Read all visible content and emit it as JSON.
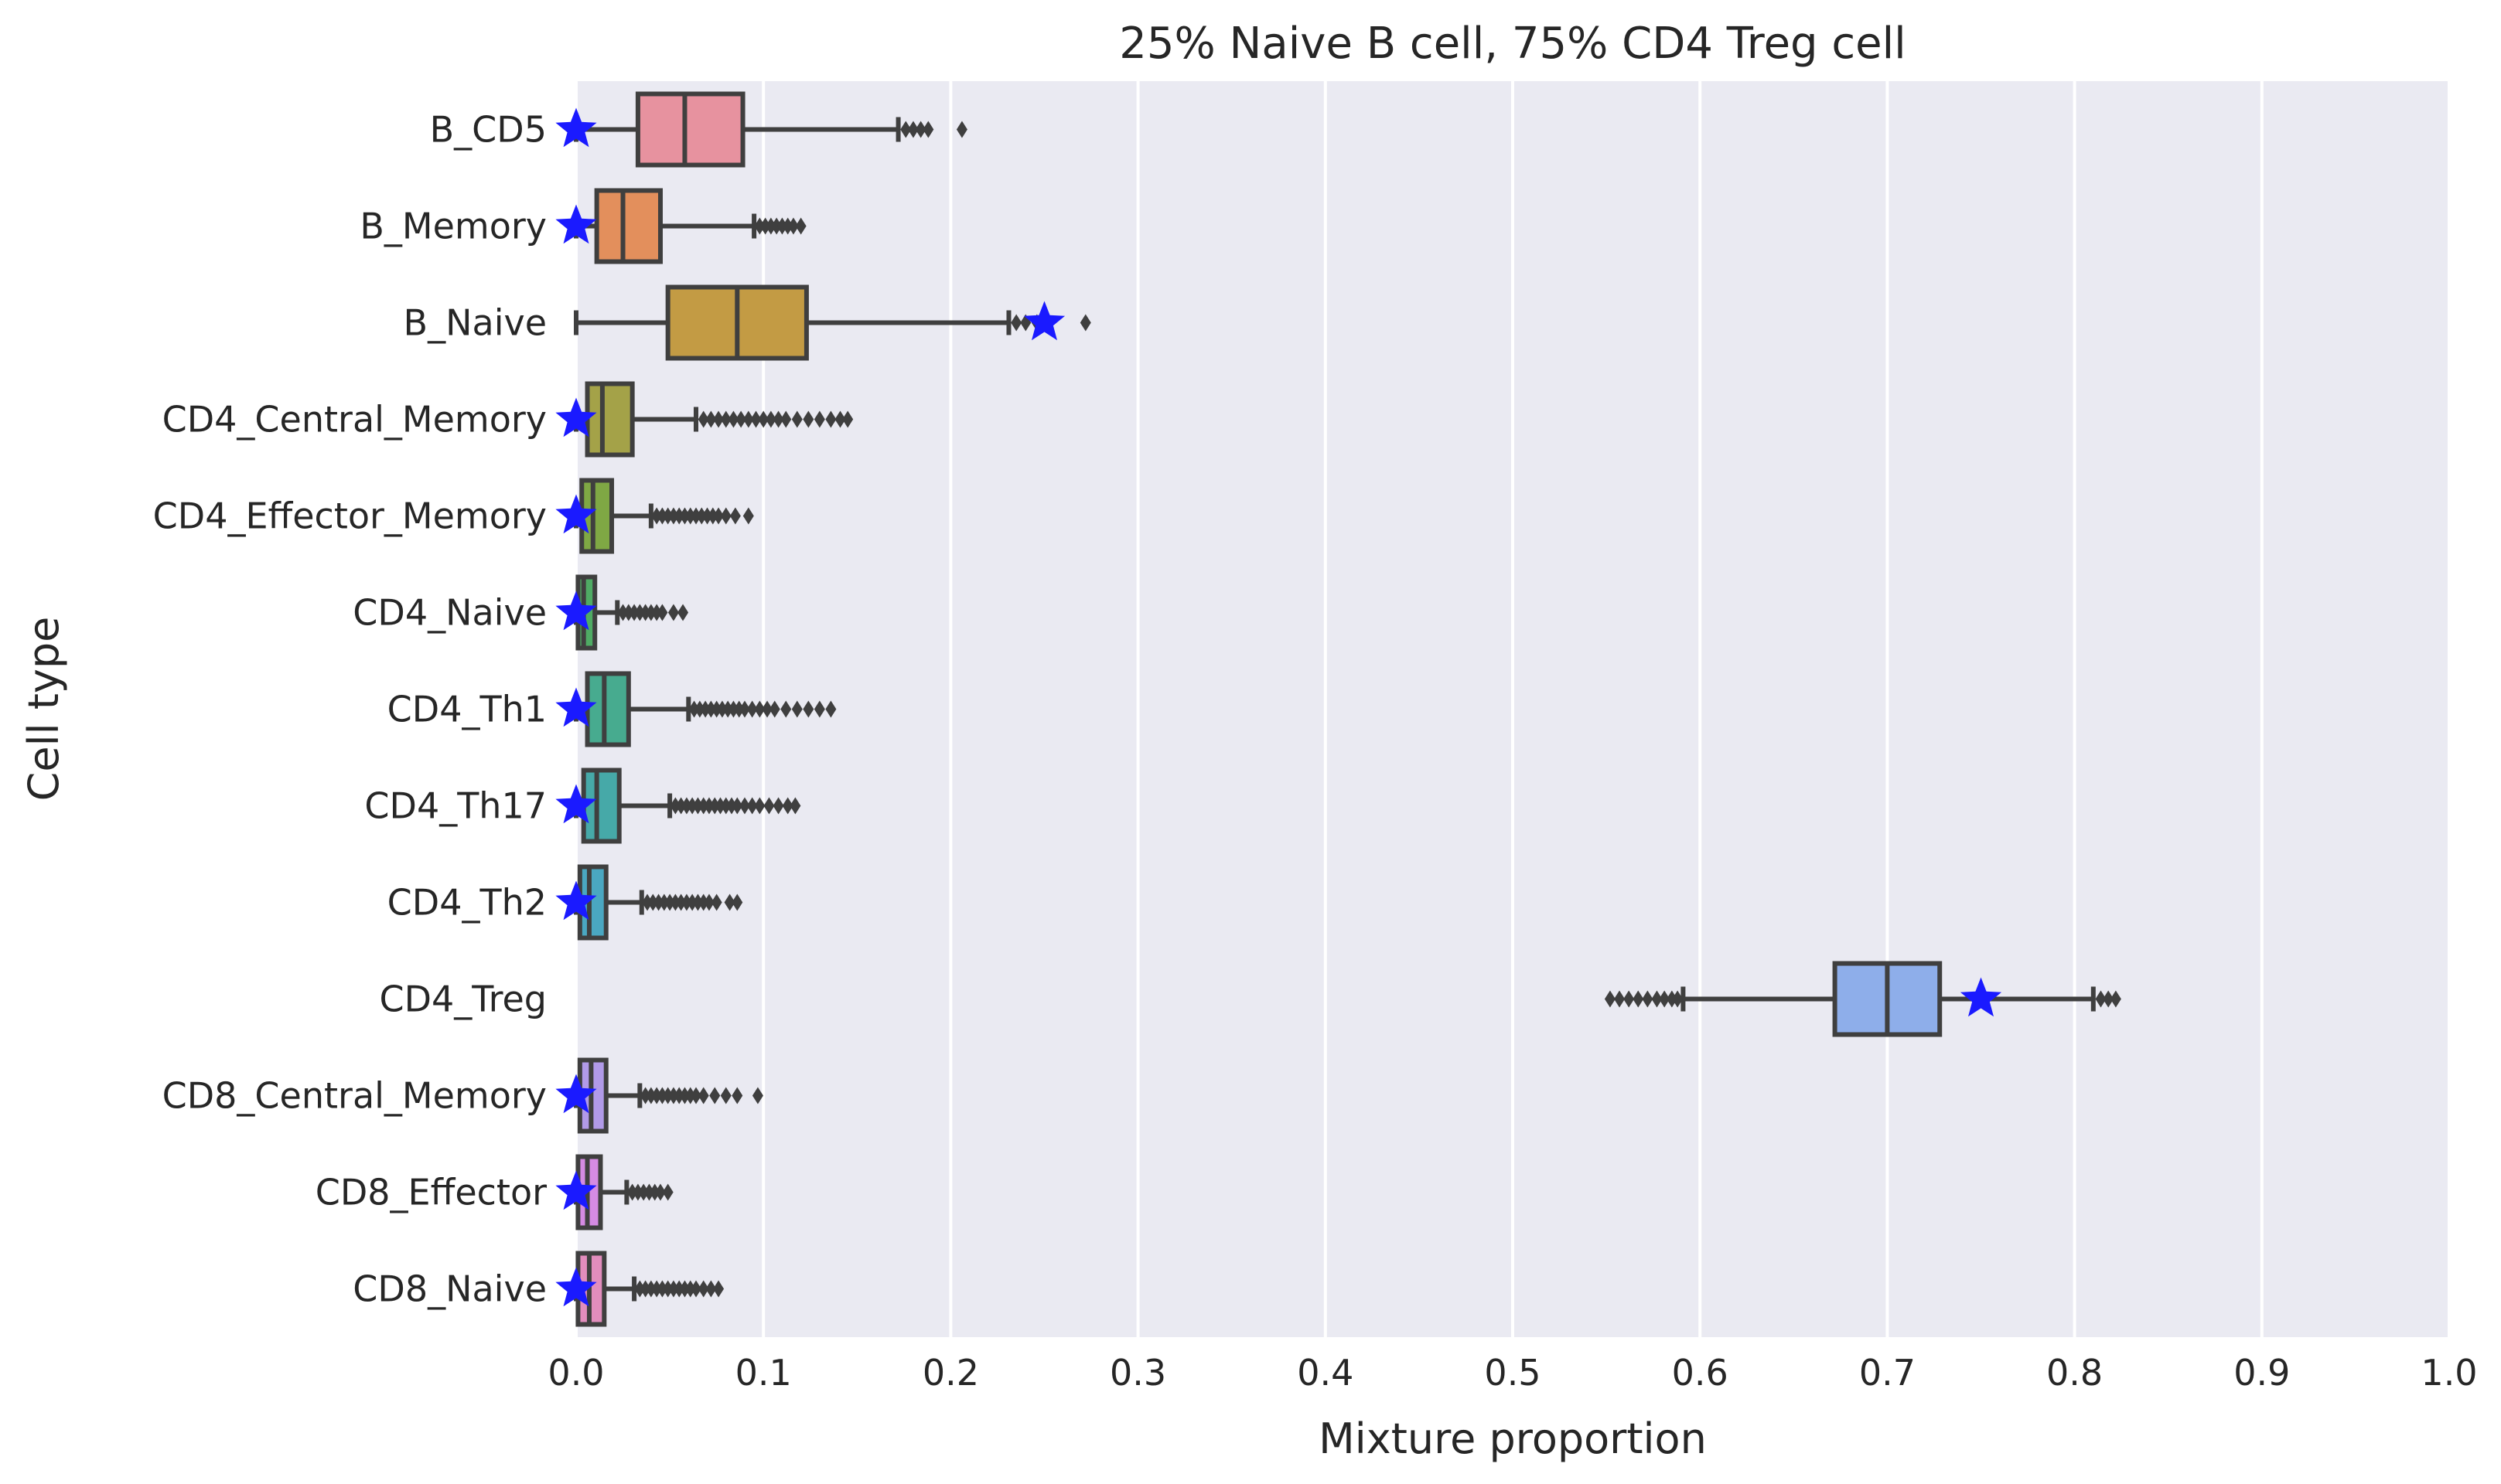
{
  "chart_data": {
    "type": "boxplot",
    "title": "25% Naive B cell, 75% CD4 Treg cell",
    "xlabel": "Mixture proportion",
    "ylabel": "Cell type",
    "xlim": [
      0,
      1
    ],
    "xticks": [
      "0.0",
      "0.1",
      "0.2",
      "0.3",
      "0.4",
      "0.5",
      "0.6",
      "0.7",
      "0.8",
      "0.9",
      "1.0"
    ],
    "grid": true,
    "marker_color": "#1a1aff",
    "categories": [
      {
        "name": "B_CD5",
        "color": "#e7929f",
        "whislo": 0.0,
        "q1": 0.033,
        "med": 0.058,
        "q3": 0.089,
        "whishi": 0.172,
        "fliers": [
          0.176,
          0.18,
          0.184,
          0.188,
          0.206
        ],
        "true": 0.0
      },
      {
        "name": "B_Memory",
        "color": "#e38f5c",
        "whislo": 0.0,
        "q1": 0.011,
        "med": 0.025,
        "q3": 0.045,
        "whishi": 0.095,
        "fliers": [
          0.098,
          0.101,
          0.104,
          0.107,
          0.11,
          0.113,
          0.116,
          0.12
        ],
        "true": 0.0
      },
      {
        "name": "B_Naive",
        "color": "#c39b44",
        "whislo": 0.0,
        "q1": 0.049,
        "med": 0.086,
        "q3": 0.123,
        "whishi": 0.231,
        "fliers": [
          0.235,
          0.24,
          0.246,
          0.272
        ],
        "true": 0.25
      },
      {
        "name": "CD4_Central_Memory",
        "color": "#a4a248",
        "whislo": 0.0,
        "q1": 0.006,
        "med": 0.014,
        "q3": 0.03,
        "whishi": 0.064,
        "fliers": [
          0.068,
          0.072,
          0.076,
          0.08,
          0.084,
          0.088,
          0.092,
          0.096,
          0.1,
          0.104,
          0.108,
          0.112,
          0.118,
          0.124,
          0.13,
          0.136,
          0.141,
          0.145
        ],
        "true": 0.0
      },
      {
        "name": "CD4_Effector_Memory",
        "color": "#7fa844",
        "whislo": 0.0,
        "q1": 0.003,
        "med": 0.009,
        "q3": 0.019,
        "whishi": 0.04,
        "fliers": [
          0.043,
          0.046,
          0.049,
          0.052,
          0.055,
          0.058,
          0.061,
          0.064,
          0.067,
          0.07,
          0.073,
          0.076,
          0.08,
          0.085,
          0.092
        ],
        "true": 0.0
      },
      {
        "name": "CD4_Naive",
        "color": "#4fab64",
        "whislo": 0.0,
        "q1": 0.001,
        "med": 0.004,
        "q3": 0.01,
        "whishi": 0.022,
        "fliers": [
          0.025,
          0.028,
          0.031,
          0.034,
          0.037,
          0.04,
          0.043,
          0.046,
          0.052,
          0.057
        ],
        "true": 0.0
      },
      {
        "name": "CD4_Th1",
        "color": "#47ab8f",
        "whislo": 0.0,
        "q1": 0.006,
        "med": 0.015,
        "q3": 0.028,
        "whishi": 0.06,
        "fliers": [
          0.063,
          0.066,
          0.069,
          0.072,
          0.075,
          0.078,
          0.081,
          0.084,
          0.087,
          0.09,
          0.094,
          0.098,
          0.102,
          0.106,
          0.112,
          0.118,
          0.124,
          0.13,
          0.136
        ],
        "true": 0.0
      },
      {
        "name": "CD4_Th17",
        "color": "#46a9a8",
        "whislo": 0.0,
        "q1": 0.004,
        "med": 0.011,
        "q3": 0.023,
        "whishi": 0.05,
        "fliers": [
          0.053,
          0.056,
          0.059,
          0.062,
          0.065,
          0.068,
          0.071,
          0.074,
          0.077,
          0.08,
          0.083,
          0.086,
          0.09,
          0.094,
          0.098,
          0.103,
          0.108,
          0.113,
          0.117
        ],
        "true": 0.0
      },
      {
        "name": "CD4_Th2",
        "color": "#4aa7c1",
        "whislo": 0.0,
        "q1": 0.002,
        "med": 0.007,
        "q3": 0.016,
        "whishi": 0.035,
        "fliers": [
          0.038,
          0.041,
          0.044,
          0.047,
          0.05,
          0.053,
          0.056,
          0.059,
          0.062,
          0.065,
          0.068,
          0.071,
          0.075,
          0.082,
          0.086
        ],
        "true": 0.0
      },
      {
        "name": "CD4_Treg",
        "color": "#8eaeea",
        "whislo": 0.591,
        "q1": 0.672,
        "med": 0.7,
        "q3": 0.728,
        "whishi": 0.81,
        "fliers": [
          0.552,
          0.557,
          0.562,
          0.567,
          0.572,
          0.577,
          0.581,
          0.585,
          0.588,
          0.814,
          0.818,
          0.822
        ],
        "true": 0.75
      },
      {
        "name": "CD8_Central_Memory",
        "color": "#b19ae8",
        "whislo": 0.0,
        "q1": 0.002,
        "med": 0.008,
        "q3": 0.016,
        "whishi": 0.034,
        "fliers": [
          0.037,
          0.04,
          0.043,
          0.046,
          0.049,
          0.052,
          0.055,
          0.058,
          0.061,
          0.064,
          0.068,
          0.074,
          0.08,
          0.086,
          0.097
        ],
        "true": 0.0
      },
      {
        "name": "CD8_Effector",
        "color": "#d58be3",
        "whislo": 0.0,
        "q1": 0.001,
        "med": 0.006,
        "q3": 0.013,
        "whishi": 0.027,
        "fliers": [
          0.03,
          0.033,
          0.036,
          0.039,
          0.042,
          0.045,
          0.049
        ],
        "true": 0.0
      },
      {
        "name": "CD8_Naive",
        "color": "#e28dbd",
        "whislo": 0.0,
        "q1": 0.001,
        "med": 0.007,
        "q3": 0.015,
        "whishi": 0.031,
        "fliers": [
          0.034,
          0.037,
          0.04,
          0.043,
          0.046,
          0.049,
          0.052,
          0.055,
          0.058,
          0.061,
          0.064,
          0.068,
          0.072,
          0.076
        ],
        "true": 0.0
      }
    ]
  }
}
